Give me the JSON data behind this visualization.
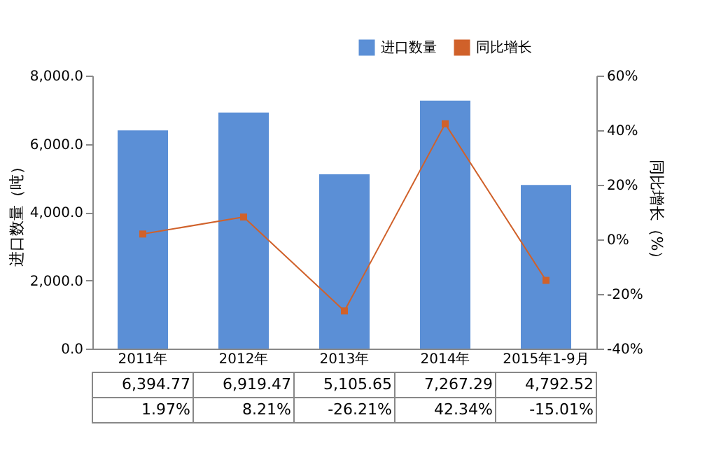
{
  "chart_data": {
    "type": "bar",
    "categories": [
      "2011年",
      "2012年",
      "2013年",
      "2014年",
      "2015年1-9月"
    ],
    "ylabel": "进口数量（吨）",
    "y2label": "同比增长（%）",
    "ylim": [
      0,
      8000
    ],
    "yticks": [
      {
        "value": 0,
        "label": "0.0"
      },
      {
        "value": 2000,
        "label": "2,000.0"
      },
      {
        "value": 4000,
        "label": "4,000.0"
      },
      {
        "value": 6000,
        "label": "6,000.0"
      },
      {
        "value": 8000,
        "label": "8,000.0"
      }
    ],
    "y2lim": [
      -40,
      60
    ],
    "y2ticks": [
      {
        "value": -40,
        "label": "-40%"
      },
      {
        "value": -20,
        "label": "-20%"
      },
      {
        "value": 0,
        "label": "0%"
      },
      {
        "value": 20,
        "label": "20%"
      },
      {
        "value": 40,
        "label": "40%"
      },
      {
        "value": 60,
        "label": "60%"
      }
    ],
    "legend": "top right",
    "grid": false,
    "marker": "square",
    "series": [
      {
        "name": "进口数量",
        "color": "#5b8fd6",
        "values": [
          6394.77,
          6919.47,
          5105.65,
          7267.29,
          4792.52
        ],
        "value_labels": [
          "6,394.77",
          "6,919.47",
          "5,105.65",
          "7,267.29",
          "4,792.52"
        ]
      },
      {
        "name": "同比增长",
        "type": "line",
        "axis": "y2",
        "color": "#d0612a",
        "values": [
          1.97,
          8.21,
          -26.21,
          42.34,
          -15.01
        ],
        "value_labels": [
          "1.97%",
          "8.21%",
          "-26.21%",
          "42.34%",
          "-15.01%"
        ]
      }
    ]
  }
}
